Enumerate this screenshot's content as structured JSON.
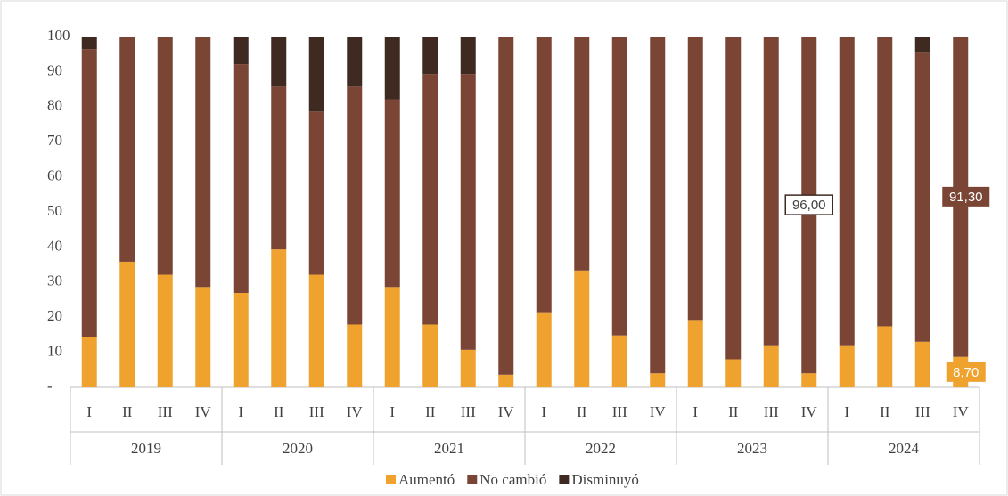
{
  "chart_data": {
    "type": "stacked_bar",
    "categories": [
      "I",
      "II",
      "III",
      "IV",
      "I",
      "II",
      "III",
      "IV",
      "I",
      "II",
      "III",
      "IV",
      "I",
      "II",
      "III",
      "IV",
      "I",
      "II",
      "III",
      "IV",
      "I",
      "II",
      "III",
      "IV"
    ],
    "category_groups": [
      "2019",
      "2020",
      "2021",
      "2022",
      "2023",
      "2024"
    ],
    "series": [
      {
        "name": "Aumentó",
        "color": "#f0a22e",
        "values": [
          14.3,
          35.8,
          32.1,
          28.6,
          26.9,
          39.3,
          32.1,
          17.9,
          28.6,
          17.9,
          10.7,
          3.6,
          21.4,
          33.3,
          14.8,
          4.0,
          19.2,
          8.0,
          12.0,
          4.0,
          12.0,
          17.4,
          13.0,
          8.7
        ],
        "value_labels": [
          null,
          null,
          null,
          null,
          null,
          null,
          null,
          null,
          null,
          null,
          null,
          null,
          null,
          null,
          null,
          null,
          null,
          null,
          null,
          null,
          null,
          null,
          null,
          "8,70"
        ]
      },
      {
        "name": "No cambió",
        "color": "#7b4536",
        "values": [
          82.1,
          64.2,
          67.9,
          71.4,
          65.2,
          46.4,
          46.5,
          67.8,
          53.5,
          71.4,
          78.6,
          96.4,
          78.6,
          66.7,
          85.2,
          96.0,
          80.8,
          92.0,
          88.0,
          96.0,
          88.0,
          82.6,
          82.6,
          91.3
        ],
        "value_labels": [
          null,
          null,
          null,
          null,
          null,
          null,
          null,
          null,
          null,
          null,
          null,
          null,
          null,
          null,
          null,
          null,
          null,
          null,
          null,
          "96,00",
          null,
          null,
          null,
          "91,30"
        ]
      },
      {
        "name": "Disminuyó",
        "color": "#3f2a22",
        "values": [
          3.6,
          0,
          0,
          0,
          7.9,
          14.3,
          21.4,
          14.3,
          17.9,
          10.7,
          10.7,
          0,
          0,
          0,
          0,
          0,
          0,
          0,
          0,
          0,
          0,
          0,
          4.4,
          0
        ]
      }
    ],
    "ylim": [
      0,
      100
    ],
    "yticks": [
      {
        "value": 0,
        "label": "-"
      },
      10,
      20,
      30,
      40,
      50,
      60,
      70,
      80,
      90,
      100
    ],
    "grid": false,
    "legend": "bottom"
  }
}
